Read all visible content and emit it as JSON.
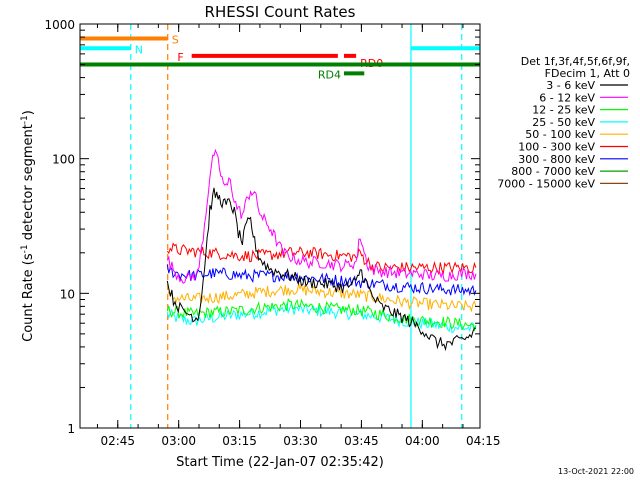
{
  "chart_data": {
    "type": "line",
    "title": "RHESSI Count Rates",
    "xlabel": "Start Time (22-Jan-07 02:35:42)",
    "ylabel_main": "Count Rate (s",
    "ylabel_sup1": "-1",
    "ylabel_mid": " detector segment",
    "ylabel_sup2": "-1",
    "ylabel_end": ")",
    "x_unit": "minutes after 02:35:42 UT",
    "xlim": [
      0,
      98.5
    ],
    "ylim": [
      1,
      1000
    ],
    "y_scale": "log",
    "x_ticks": [
      {
        "value": 9.3,
        "label": "02:45"
      },
      {
        "value": 24.3,
        "label": "03:00"
      },
      {
        "value": 39.3,
        "label": "03:15"
      },
      {
        "value": 54.3,
        "label": "03:30"
      },
      {
        "value": 69.3,
        "label": "03:45"
      },
      {
        "value": 84.3,
        "label": "04:00"
      },
      {
        "value": 99.3,
        "label": "04:15"
      }
    ],
    "y_ticks": [
      {
        "value": 1,
        "label": "1"
      },
      {
        "value": 10,
        "label": "10"
      },
      {
        "value": 100,
        "label": "100"
      },
      {
        "value": 1000,
        "label": "1000"
      }
    ],
    "legend_header": [
      "Det 1f,3f,4f,5f,6f,9f,",
      "FDecim 1, Att 0"
    ],
    "legend_position": "right, outside plot",
    "series": [
      {
        "name": "3 - 6 keV",
        "color": "#000000",
        "x": [
          21.5,
          23,
          25,
          27,
          29,
          30,
          31,
          32,
          33,
          34,
          35,
          36,
          37,
          38,
          39,
          40,
          41,
          42,
          43,
          44,
          45,
          47,
          50,
          53,
          56,
          59,
          62,
          65,
          68,
          69,
          70,
          71,
          72,
          74,
          76,
          80,
          84,
          86,
          88,
          90,
          92,
          94,
          96,
          97.5
        ],
        "y": [
          12,
          9,
          7.5,
          7,
          6.5,
          10,
          20,
          42,
          55,
          52,
          48,
          45,
          48,
          40,
          28,
          24,
          32,
          35,
          24,
          19,
          17,
          15,
          14,
          13,
          12,
          12,
          11.5,
          11,
          12,
          15,
          13,
          11,
          9.5,
          8,
          7.5,
          6.5,
          5.5,
          4.8,
          4.3,
          4.2,
          4.3,
          4.5,
          4.8,
          5.5
        ]
      },
      {
        "name": "6 - 12 keV",
        "color": "#ff00ff",
        "x": [
          21.5,
          23,
          25,
          27,
          29,
          30,
          31,
          32,
          33,
          34,
          35,
          36,
          37,
          38,
          39,
          40,
          41,
          42,
          43,
          44,
          45,
          46,
          47,
          48,
          50,
          53,
          56,
          59,
          62,
          65,
          68,
          69,
          70,
          71,
          72,
          75,
          80,
          84,
          86,
          90,
          94,
          97.5
        ],
        "y": [
          18,
          15,
          13,
          13,
          14,
          22,
          40,
          75,
          110,
          95,
          70,
          60,
          72,
          48,
          42,
          38,
          48,
          58,
          55,
          42,
          36,
          33,
          30,
          26,
          20,
          18,
          17,
          17,
          16.5,
          16,
          17,
          27,
          20,
          16,
          15,
          14.5,
          14,
          14,
          13.5,
          13.5,
          14,
          14
        ]
      },
      {
        "name": "12 - 25 keV",
        "color": "#00ff00",
        "x": [
          21.5,
          24,
          28,
          32,
          36,
          40,
          44,
          48,
          52,
          56,
          60,
          64,
          68,
          72,
          76,
          80,
          84,
          88,
          92,
          96,
          97.5
        ],
        "y": [
          7.5,
          7.2,
          7.0,
          7.2,
          7.3,
          7.5,
          7.8,
          8.0,
          8.2,
          8.0,
          7.8,
          7.6,
          7.5,
          7.2,
          6.8,
          6.5,
          6.3,
          6.2,
          6.0,
          5.8,
          5.8
        ]
      },
      {
        "name": "25 - 50 keV",
        "color": "#00ffff",
        "x": [
          21.5,
          24,
          28,
          32,
          36,
          40,
          44,
          48,
          52,
          56,
          60,
          64,
          68,
          72,
          76,
          80,
          84,
          88,
          92,
          96,
          97.5
        ],
        "y": [
          7.0,
          6.5,
          6.2,
          6.5,
          6.8,
          7.0,
          7.2,
          7.5,
          7.7,
          7.5,
          7.4,
          7.2,
          7.0,
          6.8,
          6.5,
          6.2,
          6.0,
          5.8,
          5.6,
          5.5,
          5.5
        ]
      },
      {
        "name": "50 - 100 keV",
        "color": "#ffb000",
        "x": [
          21.5,
          24,
          28,
          32,
          36,
          40,
          44,
          48,
          52,
          56,
          60,
          64,
          68,
          72,
          76,
          80,
          84,
          88,
          92,
          96,
          97.5
        ],
        "y": [
          9.5,
          9.2,
          9.0,
          9.3,
          9.5,
          9.8,
          10.2,
          10.5,
          10.8,
          10.5,
          10.3,
          10.0,
          9.8,
          9.4,
          9.0,
          8.6,
          8.4,
          8.2,
          8.0,
          8.0,
          8.0
        ]
      },
      {
        "name": "100 - 300 keV",
        "color": "#ff0000",
        "x": [
          21.5,
          24,
          28,
          32,
          36,
          40,
          44,
          48,
          52,
          56,
          60,
          64,
          66,
          68,
          69,
          70,
          71,
          72,
          74,
          76,
          80,
          84,
          88,
          92,
          96,
          97.5
        ],
        "y": [
          22,
          21,
          20.5,
          20,
          19.5,
          19,
          19,
          19.5,
          20,
          20,
          19.5,
          19,
          19,
          18.5,
          20,
          18,
          17,
          16,
          15.5,
          15.5,
          15.5,
          15.5,
          15.5,
          15.5,
          15.5,
          15.5
        ]
      },
      {
        "name": "300 - 800 keV",
        "color": "#0000ff",
        "x": [
          21.5,
          24,
          28,
          32,
          36,
          40,
          44,
          48,
          52,
          56,
          60,
          64,
          68,
          72,
          76,
          80,
          84,
          88,
          92,
          96,
          97.5
        ],
        "y": [
          15,
          14,
          13.5,
          14,
          14,
          13.5,
          13.5,
          13.5,
          13.5,
          13,
          12.8,
          12.5,
          12.2,
          11.8,
          11.5,
          11.2,
          11,
          10.8,
          10.6,
          10.5,
          10.5
        ]
      },
      {
        "name": "800 - 7000 keV",
        "color": "#00a000",
        "x": [],
        "y": []
      },
      {
        "name": "7000 - 15000 keV",
        "color": "#8b4513",
        "x": [],
        "y": []
      }
    ],
    "annotations": {
      "bars": [
        {
          "label": "S",
          "color": "#ff7f00",
          "x0": 0,
          "x1": 21.6,
          "y": 780
        },
        {
          "label": "N",
          "color": "#00ffff",
          "x0": 0,
          "x1": 12.5,
          "y": 660
        },
        {
          "label": "F",
          "color": "#ff0000",
          "x0": 27.5,
          "x1": 63.5,
          "y": 580
        },
        {
          "label": "RD0",
          "color": "#ff0000",
          "x0": 65,
          "x1": 68,
          "y": 580
        },
        {
          "label": "",
          "color": "#008000",
          "x0": 0,
          "x1": 98.5,
          "y": 500
        },
        {
          "label": "RD4",
          "color": "#008000",
          "x0": 65,
          "x1": 70,
          "y": 430
        },
        {
          "label": "",
          "color": "#00ffff",
          "x0": 81.5,
          "x1": 98.5,
          "y": 660
        }
      ],
      "vlines": [
        {
          "color": "#00ffff",
          "x": 12.5,
          "style": "dashed"
        },
        {
          "color": "#ff7f00",
          "x": 21.6,
          "style": "dashed"
        },
        {
          "color": "#00ffff",
          "x": 81.5,
          "style": "solid"
        },
        {
          "color": "#00ffff",
          "x": 94.0,
          "style": "dashed"
        }
      ]
    },
    "grid": false,
    "footer": "13-Oct-2021 22:00"
  }
}
